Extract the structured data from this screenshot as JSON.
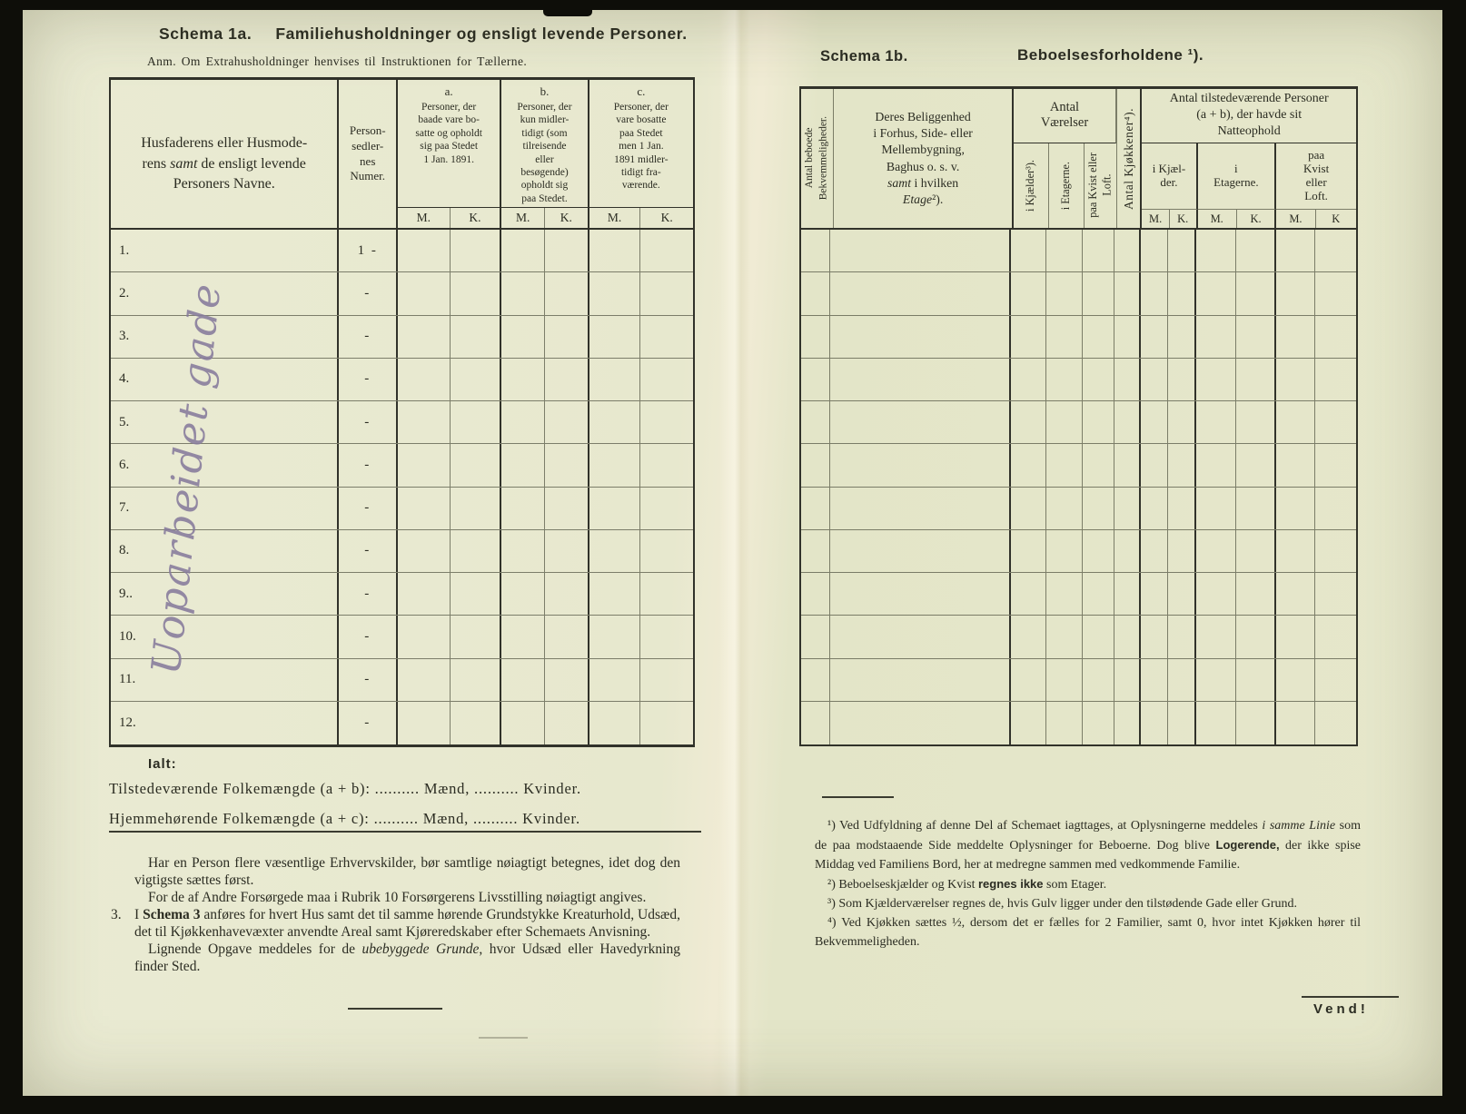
{
  "left": {
    "schema_label": "Schema 1a.",
    "title": "Familiehusholdninger og ensligt levende Personer.",
    "note": "Anm.  Om Extrahusholdninger henvises til Instruktionen for Tællerne.",
    "handwriting": "Uoparbeidet gade",
    "header": {
      "name_1": "Husfaderens eller Husmode-\nrens ",
      "name_samt": "samt",
      "name_2": " de ensligt levende\nPersoners Navne.",
      "numer": "Person-\nsedler-\nnes\nNumer.",
      "a_letter": "a.",
      "a_desc": "Personer, der\nbaade vare bo-\nsatte og opholdt\nsig paa Stedet\n1 Jan. 1891.",
      "b_letter": "b.",
      "b_desc": "Personer, der\nkun midler-\ntidigt (som\ntilreisende\neller\nbesøgende)\nopholdt sig\npaa Stedet.",
      "c_letter": "c.",
      "c_desc": "Personer, der\nvare bosatte\npaa Stedet\nmen 1 Jan.\n1891 midler-\ntidigt fra-\nværende.",
      "m": "M.",
      "k": "K."
    },
    "rows": [
      {
        "label": "1.",
        "numer": "1 -"
      },
      {
        "label": "2.",
        "numer": "-"
      },
      {
        "label": "3.",
        "numer": "-"
      },
      {
        "label": "4.",
        "numer": "-"
      },
      {
        "label": "5.",
        "numer": "-"
      },
      {
        "label": "6.",
        "numer": "-"
      },
      {
        "label": "7.",
        "numer": "-"
      },
      {
        "label": "8.",
        "numer": "-"
      },
      {
        "label": "9..",
        "numer": "-"
      },
      {
        "label": "10.",
        "numer": "-"
      },
      {
        "label": "11.",
        "numer": "-"
      },
      {
        "label": "12.",
        "numer": "-"
      }
    ],
    "ialt": "Ialt:",
    "totals": {
      "t1": "Tilstedeværende Folkemængde (a + b): .......... Mænd, .......... Kvinder.",
      "t2": "Hjemmehørende Folkemængde (a + c): .......... Mænd, .......... Kvinder."
    },
    "notes": {
      "p1": "Har en Person flere væsentlige Erhvervskilder, bør samtlige nøiagtigt betegnes, idet dog den vigtigste sættes først.",
      "p2": "For de af Andre Forsørgede maa i Rubrik 10 Forsørgerens Livsstilling nøiagtigt angives.",
      "p3_num": "3.",
      "p3_pre": "I ",
      "p3_bold": "Schema 3",
      "p3_post": " anføres for hvert Hus samt det til samme hørende Grundstykke Kreaturhold, Udsæd, det til Kjøkkenhavevæxter anvendte Areal samt Kjøreredskaber efter Schemaets Anvisning.",
      "p4_pre": "Lignende Opgave meddeles for de ",
      "p4_italic": "ubebyggede Grunde",
      "p4_post": ", hvor Udsæd eller Havedyrkning finder Sted."
    }
  },
  "right": {
    "schema_label": "Schema 1b.",
    "title": "Beboelsesforholdene ¹).",
    "header": {
      "c1": "Antal beboede\nBekvemmeligheder.",
      "c2_1": "Deres Beliggenhed\ni Forhus, Side- eller\nMellembygning,\nBaghus o. s. v.\n",
      "c2_samt": "samt",
      "c2_2": " i hvilken\n",
      "c2_etage": "Etage",
      "c2_sup": "²).",
      "vaerelser": "Antal\nVærelser",
      "v1": "i Kjælder³).",
      "v2": "i Etagerne.",
      "v3": "paa Kvist eller\nLoft.",
      "kjokkener": "Antal Kjøkkener⁴).",
      "natteophold": "Antal tilstedeværende Personer\n(a + b), der havde sit\nNatteophold",
      "n1": "i Kjæl-\nder.",
      "n2": "i\nEtagerne.",
      "n3": "paa\nKvist\neller\nLoft.",
      "m": "M.",
      "k": "K.",
      "k_last": "K"
    },
    "row_count": 12,
    "footnotes": {
      "fn1_pre": "¹) Ved Udfyldning af denne Del af Schemaet iagttages, at Oplysningerne meddeles ",
      "fn1_italic": "i samme Linie",
      "fn1_mid": " som de paa modstaaende Side meddelte Oplysninger for Beboerne. Dog blive ",
      "fn1_bold": "Logerende,",
      "fn1_post": " der ikke spise Middag ved Familiens Bord, her at medregne sammen med vedkommende Familie.",
      "fn2_pre": "²) Beboelseskjælder og Kvist ",
      "fn2_bold": "regnes ikke",
      "fn2_post": " som Etager.",
      "fn3": "³) Som Kjælderværelser regnes de, hvis Gulv ligger under den tilstødende Gade eller Grund.",
      "fn4": "⁴) Ved Kjøkken sættes ½, dersom det er fælles for 2 Familier, samt 0, hvor intet Kjøkken hører til Bekvemmeligheden."
    },
    "vend": "Vend!"
  }
}
